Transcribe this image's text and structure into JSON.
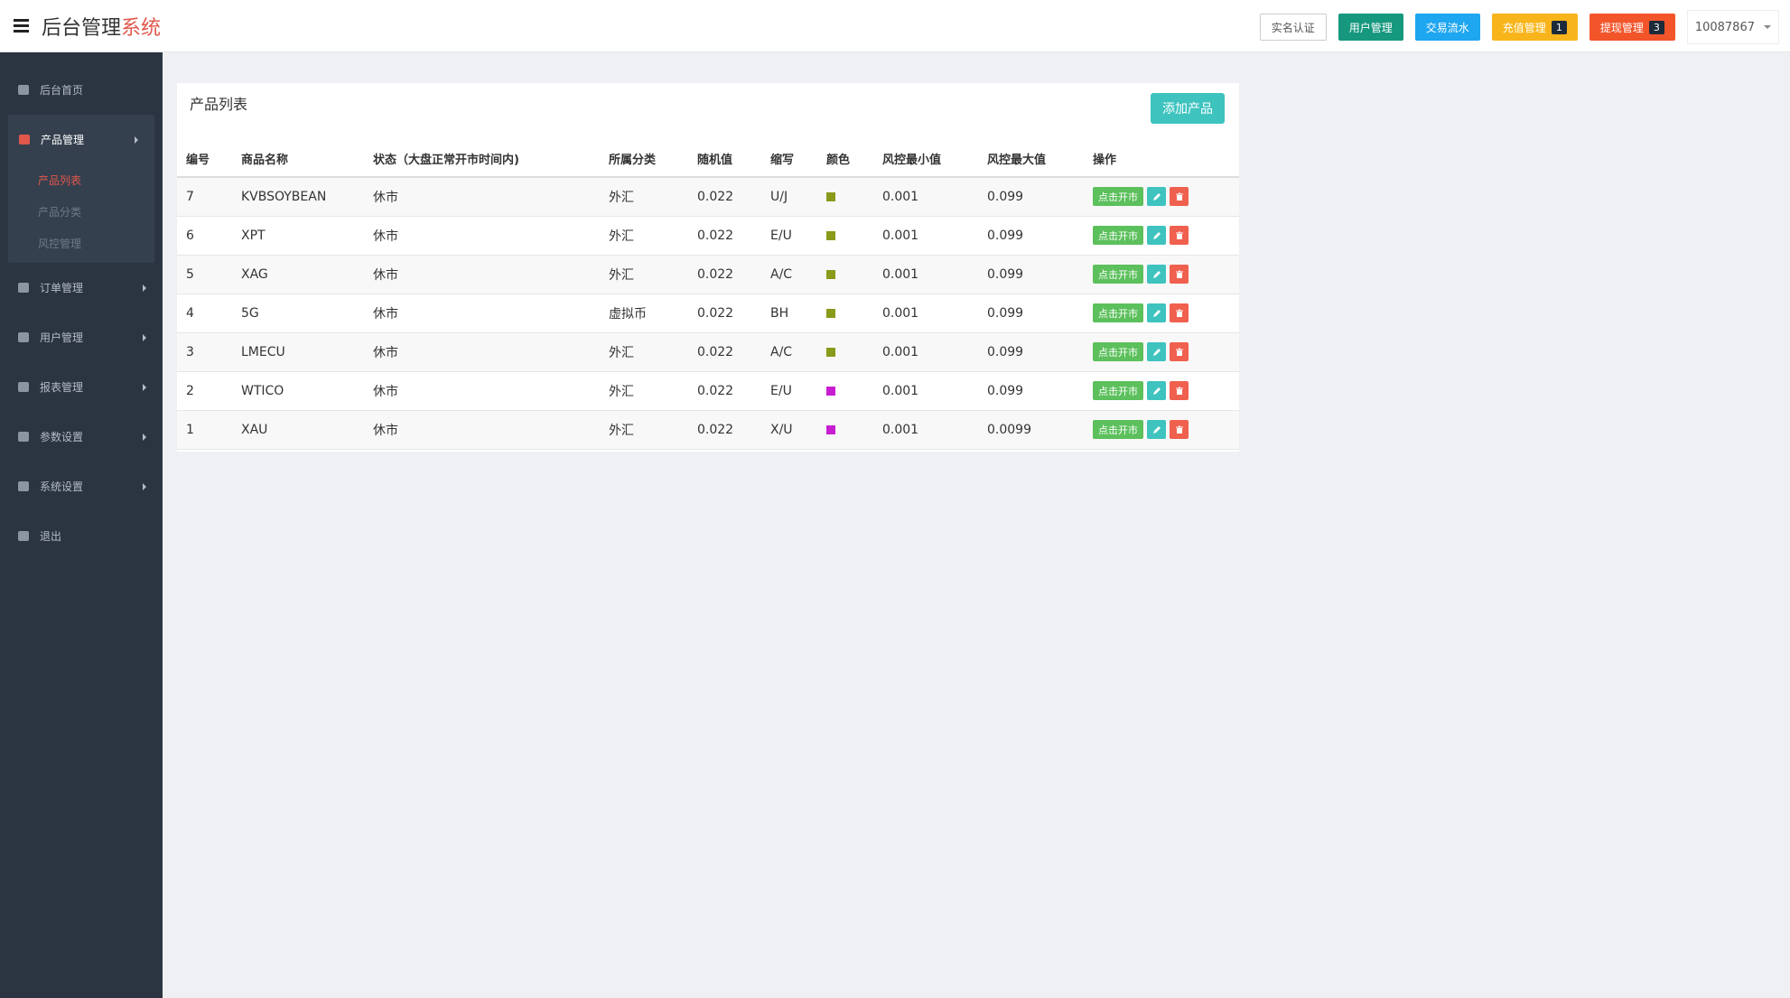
{
  "header": {
    "title_main": "后台管理",
    "title_accent": "系统",
    "buttons": [
      {
        "label": "实名认证",
        "color": "#ffffff"
      },
      {
        "label": "用户管理",
        "color": "#16987e"
      },
      {
        "label": "交易流水",
        "color": "#1ea6f0"
      },
      {
        "label": "充值管理",
        "color": "#f8b51b",
        "badge": "1"
      },
      {
        "label": "提现管理",
        "color": "#f3552b",
        "badge": "3"
      }
    ],
    "user": "10087867"
  },
  "sidebar": {
    "items": [
      {
        "label": "后台首页"
      },
      {
        "label": "产品管理",
        "children": [
          {
            "label": "产品列表"
          },
          {
            "label": "产品分类"
          },
          {
            "label": "风控管理"
          }
        ]
      },
      {
        "label": "订单管理"
      },
      {
        "label": "用户管理"
      },
      {
        "label": "报表管理"
      },
      {
        "label": "参数设置"
      },
      {
        "label": "系统设置"
      },
      {
        "label": "退出"
      }
    ]
  },
  "panel": {
    "title": "产品列表",
    "add_button": "添加产品"
  },
  "table": {
    "columns": [
      "编号",
      "商品名称",
      "状态（大盘正常开市时间内)",
      "所属分类",
      "随机值",
      "缩写",
      "颜色",
      "风控最小值",
      "风控最大值",
      "操作"
    ],
    "rows": [
      {
        "id": "7",
        "name": "KVBSOYBEAN",
        "status": "休市",
        "category": "外汇",
        "random": "0.022",
        "abbr": "U/J",
        "color": "#8a9a1b",
        "min": "0.001",
        "max": "0.099"
      },
      {
        "id": "6",
        "name": "XPT",
        "status": "休市",
        "category": "外汇",
        "random": "0.022",
        "abbr": "E/U",
        "color": "#8a9a1b",
        "min": "0.001",
        "max": "0.099"
      },
      {
        "id": "5",
        "name": "XAG",
        "status": "休市",
        "category": "外汇",
        "random": "0.022",
        "abbr": "A/C",
        "color": "#8a9a1b",
        "min": "0.001",
        "max": "0.099"
      },
      {
        "id": "4",
        "name": "5G",
        "status": "休市",
        "category": "虚拟币",
        "random": "0.022",
        "abbr": "BH",
        "color": "#8a9a1b",
        "min": "0.001",
        "max": "0.099"
      },
      {
        "id": "3",
        "name": "LMECU",
        "status": "休市",
        "category": "外汇",
        "random": "0.022",
        "abbr": "A/C",
        "color": "#8a9a1b",
        "min": "0.001",
        "max": "0.099"
      },
      {
        "id": "2",
        "name": "WTICO",
        "status": "休市",
        "category": "外汇",
        "random": "0.022",
        "abbr": "E/U",
        "color": "#c81ed2",
        "min": "0.001",
        "max": "0.099"
      },
      {
        "id": "1",
        "name": "XAU",
        "status": "休市",
        "category": "外汇",
        "random": "0.022",
        "abbr": "X/U",
        "color": "#c81ed2",
        "min": "0.001",
        "max": "0.0099"
      }
    ],
    "action_label": "点击开市"
  }
}
